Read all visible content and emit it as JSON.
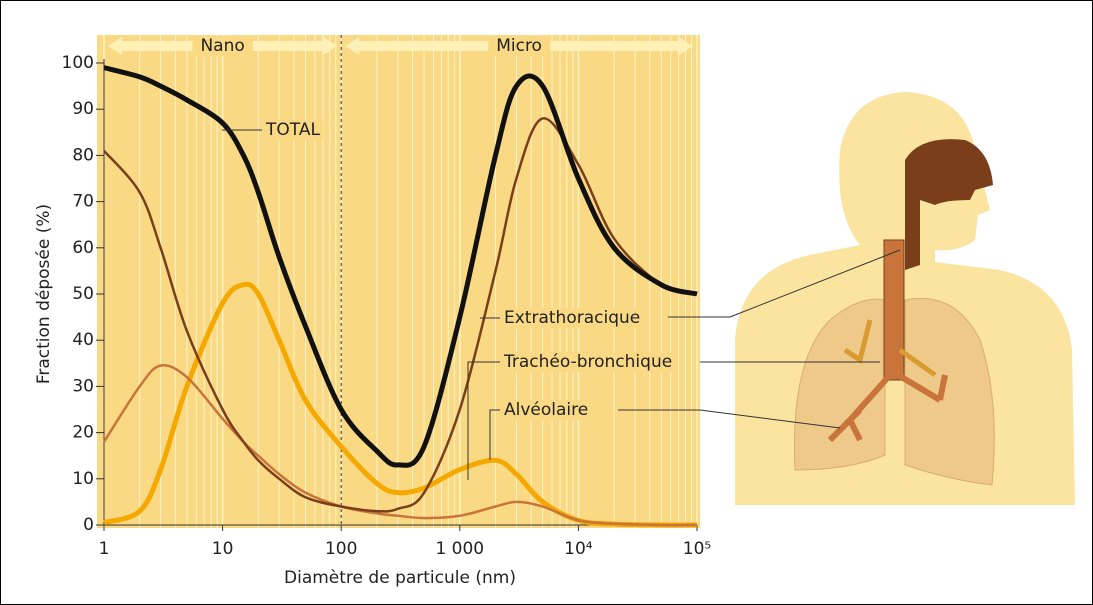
{
  "chart_data": {
    "type": "line",
    "x_label": "Diamètre de particule (nm)",
    "y_label": "Fraction déposée (%)",
    "log_x": true,
    "minor_grid": true,
    "regions": [
      {
        "label": "Nano",
        "from": 1,
        "to": 100
      },
      {
        "label": "Micro",
        "from": 100,
        "to": 100000
      }
    ],
    "x": [
      1,
      2,
      3,
      5,
      10,
      15,
      20,
      30,
      50,
      100,
      200,
      300,
      500,
      1000,
      2000,
      3000,
      5000,
      10000,
      20000,
      50000,
      100000
    ],
    "series": [
      {
        "name": "TOTAL",
        "color": "#111111",
        "values": [
          99,
          97,
          95,
          92,
          87,
          80,
          72,
          58,
          43,
          25,
          16,
          13,
          17,
          45,
          80,
          95,
          95,
          75,
          60,
          52,
          50
        ]
      },
      {
        "name": "Extrathoracique",
        "color": "#7a3f1a",
        "values": [
          81,
          72,
          60,
          42,
          25,
          18,
          14,
          10,
          6,
          4,
          3,
          3.5,
          7,
          25,
          55,
          75,
          88,
          78,
          62,
          52,
          50
        ]
      },
      {
        "name": "Trachéo-bronchique",
        "color": "#c8743a",
        "values": [
          18,
          30,
          34.5,
          32,
          23,
          18,
          15,
          11,
          7,
          4,
          2.5,
          2,
          1.5,
          2,
          4,
          5,
          4,
          1,
          0.3,
          0,
          0
        ]
      },
      {
        "name": "Alvéolaire",
        "color": "#f5a800",
        "values": [
          0.5,
          3,
          12,
          30,
          48,
          52,
          50,
          40,
          27,
          17,
          9,
          7,
          8,
          12,
          14,
          11,
          5,
          1,
          0.2,
          0,
          0
        ]
      }
    ],
    "xlim": [
      1,
      100000
    ],
    "xticks": [
      1,
      10,
      100,
      {
        "value": 1000,
        "label": "1 000"
      },
      {
        "value": 10000,
        "label": "10⁴"
      },
      {
        "value": 100000,
        "label": "10⁵"
      }
    ],
    "ylim": [
      0,
      100
    ],
    "yticks": [
      0,
      10,
      20,
      30,
      40,
      50,
      60,
      70,
      80,
      90,
      100
    ]
  }
}
